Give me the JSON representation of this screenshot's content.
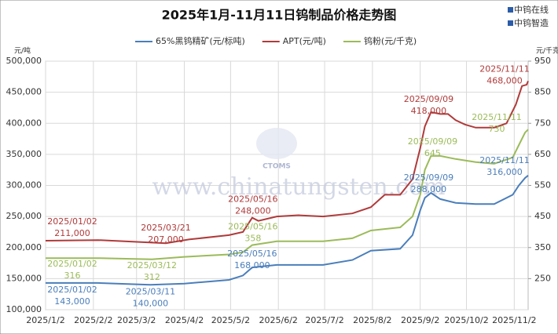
{
  "chart_data": {
    "type": "line",
    "title": "2025年1月-11月11日钨制品价格走势图",
    "brand": [
      "中钨在线",
      "中钨智造"
    ],
    "watermark": "www.chinatungsten.com",
    "logo_text": "CTOMS",
    "y_unit": "元/吨",
    "y2_unit": "元/千克",
    "xlim": [
      "2025/1/2",
      "2025/11/11"
    ],
    "xticks": [
      "2025/1/2",
      "2025/2/2",
      "2025/3/2",
      "2025/4/2",
      "2025/5/2",
      "2025/6/2",
      "2025/7/2",
      "2025/8/2",
      "2025/9/2",
      "2025/10/2",
      "2025/11/2"
    ],
    "ylim": [
      100000,
      500000
    ],
    "yticks": [
      {
        "value": 100000,
        "label": "100,000"
      },
      {
        "value": 150000,
        "label": "150,000"
      },
      {
        "value": 200000,
        "label": "200,000"
      },
      {
        "value": 250000,
        "label": "250,000"
      },
      {
        "value": 300000,
        "label": "300,000"
      },
      {
        "value": 350000,
        "label": "350,000"
      },
      {
        "value": 400000,
        "label": "400,000"
      },
      {
        "value": 450000,
        "label": "450,000"
      },
      {
        "value": 500000,
        "label": "500,000"
      }
    ],
    "y2lim": [
      150,
      950
    ],
    "y2ticks": [
      250,
      350,
      450,
      550,
      650,
      750,
      850,
      950
    ],
    "grid": true,
    "legend": "top",
    "series": [
      {
        "name": "65%黑钨精矿(元/标吨)",
        "color": "#4a7ebb",
        "x": [
          "2025/01/02",
          "2025/02/05",
          "2025/03/11",
          "2025/04/02",
          "2025/05/01",
          "2025/05/10",
          "2025/05/16",
          "2025/06/01",
          "2025/07/01",
          "2025/07/20",
          "2025/08/01",
          "2025/08/20",
          "2025/08/28",
          "2025/09/02",
          "2025/09/05",
          "2025/09/09",
          "2025/09/15",
          "2025/09/25",
          "2025/10/08",
          "2025/10/20",
          "2025/11/01",
          "2025/11/05",
          "2025/11/09",
          "2025/11/11"
        ],
        "values": [
          143000,
          143000,
          140000,
          142000,
          148000,
          155000,
          168000,
          172000,
          172000,
          180000,
          195000,
          198000,
          220000,
          260000,
          280000,
          288000,
          278000,
          272000,
          270000,
          270000,
          285000,
          300000,
          312000,
          316000
        ],
        "annotations": [
          {
            "date": "2025/01/02",
            "label": "143,000"
          },
          {
            "date": "2025/03/11",
            "label": "140,000"
          },
          {
            "date": "2025/05/16",
            "label": "168,000"
          },
          {
            "date": "2025/09/09",
            "label": "288,000"
          },
          {
            "date": "2025/11/11",
            "label": "316,000"
          }
        ]
      },
      {
        "name": "APT(元/吨)",
        "color": "#b03a3a",
        "x": [
          "2025/01/02",
          "2025/02/05",
          "2025/03/21",
          "2025/04/05",
          "2025/05/01",
          "2025/05/10",
          "2025/05/16",
          "2025/05/20",
          "2025/06/01",
          "2025/06/15",
          "2025/07/01",
          "2025/07/20",
          "2025/08/01",
          "2025/08/10",
          "2025/08/20",
          "2025/08/28",
          "2025/09/02",
          "2025/09/05",
          "2025/09/09",
          "2025/09/15",
          "2025/09/20",
          "2025/09/25",
          "2025/10/01",
          "2025/10/08",
          "2025/10/20",
          "2025/10/28",
          "2025/11/03",
          "2025/11/07",
          "2025/11/10",
          "2025/11/11"
        ],
        "values": [
          211000,
          212000,
          207000,
          213000,
          220000,
          225000,
          248000,
          243000,
          250000,
          252000,
          250000,
          255000,
          265000,
          285000,
          285000,
          310000,
          360000,
          395000,
          418000,
          415000,
          415000,
          405000,
          398000,
          393000,
          393000,
          400000,
          430000,
          460000,
          462000,
          468000
        ],
        "annotations": [
          {
            "date": "2025/01/02",
            "label": "211,000"
          },
          {
            "date": "2025/03/21",
            "label": "207,000"
          },
          {
            "date": "2025/05/16",
            "label": "248,000"
          },
          {
            "date": "2025/09/09",
            "label": "418,000"
          },
          {
            "date": "2025/11/11",
            "label": "468,000"
          }
        ]
      },
      {
        "name": "钨粉(元/千克)",
        "color": "#9bbb59",
        "axis": "y2",
        "x": [
          "2025/01/02",
          "2025/02/05",
          "2025/03/12",
          "2025/04/02",
          "2025/05/01",
          "2025/05/10",
          "2025/05/16",
          "2025/06/01",
          "2025/07/01",
          "2025/07/20",
          "2025/08/01",
          "2025/08/20",
          "2025/08/28",
          "2025/09/02",
          "2025/09/05",
          "2025/09/09",
          "2025/09/15",
          "2025/09/25",
          "2025/10/08",
          "2025/10/20",
          "2025/11/01",
          "2025/11/05",
          "2025/11/09",
          "2025/11/11"
        ],
        "values": [
          316,
          316,
          312,
          320,
          328,
          335,
          358,
          370,
          370,
          380,
          405,
          415,
          450,
          520,
          600,
          645,
          645,
          635,
          625,
          620,
          640,
          680,
          720,
          730
        ],
        "annotations": [
          {
            "date": "2025/01/02",
            "label": "316"
          },
          {
            "date": "2025/03/12",
            "label": "312"
          },
          {
            "date": "2025/05/16",
            "label": "358"
          },
          {
            "date": "2025/09/09",
            "label": "645"
          },
          {
            "date": "2025/11/11",
            "label": "730"
          }
        ]
      }
    ]
  }
}
